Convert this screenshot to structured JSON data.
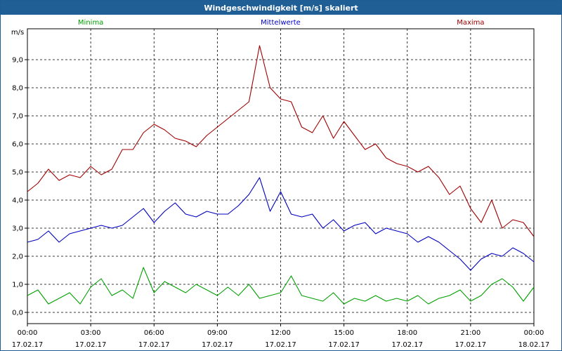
{
  "window": {
    "title": "Windgeschwindigkeit [m/s] skaliert"
  },
  "chart_data": {
    "type": "line",
    "title": "Windgeschwindigkeit [m/s] skaliert",
    "ylabel": "m/s",
    "xlabel": "",
    "ylim": [
      -0.4,
      10.1
    ],
    "xlim": [
      0,
      24
    ],
    "grid": true,
    "legend_placement": "top",
    "y_ticks": [
      "0,0",
      "1,0",
      "2,0",
      "3,0",
      "4,0",
      "5,0",
      "6,0",
      "7,0",
      "8,0",
      "9,0"
    ],
    "y_tick_values": [
      0,
      1,
      2,
      3,
      4,
      5,
      6,
      7,
      8,
      9
    ],
    "x_ticks": [
      {
        "time": "00:00",
        "date": "17.02.17"
      },
      {
        "time": "03:00",
        "date": "17.02.17"
      },
      {
        "time": "06:00",
        "date": "17.02.17"
      },
      {
        "time": "09:00",
        "date": "17.02.17"
      },
      {
        "time": "12:00",
        "date": "17.02.17"
      },
      {
        "time": "15:00",
        "date": "17.02.17"
      },
      {
        "time": "18:00",
        "date": "17.02.17"
      },
      {
        "time": "21:00",
        "date": "17.02.17"
      },
      {
        "time": "00:00",
        "date": "18.02.17"
      }
    ],
    "x_tick_values": [
      0,
      3,
      6,
      9,
      12,
      15,
      18,
      21,
      24
    ],
    "x_hours": [
      0,
      0.5,
      1,
      1.5,
      2,
      2.5,
      3,
      3.5,
      4,
      4.5,
      5,
      5.5,
      6,
      6.5,
      7,
      7.5,
      8,
      8.5,
      9,
      9.5,
      10,
      10.5,
      11,
      11.5,
      12,
      12.5,
      13,
      13.5,
      14,
      14.5,
      15,
      15.5,
      16,
      16.5,
      17,
      17.5,
      18,
      18.5,
      19,
      19.5,
      20,
      20.5,
      21,
      21.5,
      22,
      22.5,
      23,
      23.5,
      24
    ],
    "series": [
      {
        "name": "Minima",
        "color": "#00a000",
        "values": [
          0.6,
          0.8,
          0.3,
          0.5,
          0.7,
          0.3,
          0.9,
          1.2,
          0.6,
          0.8,
          0.5,
          1.6,
          0.7,
          1.1,
          0.9,
          0.7,
          1.0,
          0.8,
          0.6,
          0.9,
          0.6,
          1.0,
          0.5,
          0.6,
          0.7,
          1.3,
          0.6,
          0.5,
          0.4,
          0.7,
          0.3,
          0.5,
          0.4,
          0.6,
          0.4,
          0.5,
          0.4,
          0.6,
          0.3,
          0.5,
          0.6,
          0.8,
          0.4,
          0.6,
          1.0,
          1.2,
          0.9,
          0.4,
          0.9
        ]
      },
      {
        "name": "Mittelwerte",
        "color": "#0000c0",
        "values": [
          2.5,
          2.6,
          2.9,
          2.5,
          2.8,
          2.9,
          3.0,
          3.1,
          3.0,
          3.1,
          3.4,
          3.7,
          3.2,
          3.6,
          3.9,
          3.5,
          3.4,
          3.6,
          3.5,
          3.5,
          3.8,
          4.2,
          4.8,
          3.6,
          4.3,
          3.5,
          3.4,
          3.5,
          3.0,
          3.3,
          2.9,
          3.1,
          3.2,
          2.8,
          3.0,
          2.9,
          2.8,
          2.5,
          2.7,
          2.5,
          2.2,
          1.9,
          1.5,
          1.9,
          2.1,
          2.0,
          2.3,
          2.1,
          1.8
        ]
      },
      {
        "name": "Maxima",
        "color": "#a00000",
        "values": [
          4.3,
          4.6,
          5.1,
          4.7,
          4.9,
          4.8,
          5.2,
          4.9,
          5.1,
          5.8,
          5.8,
          6.4,
          6.7,
          6.5,
          6.2,
          6.1,
          5.9,
          6.3,
          6.6,
          6.9,
          7.2,
          7.5,
          9.5,
          8.0,
          7.6,
          7.5,
          6.6,
          6.4,
          7.0,
          6.2,
          6.8,
          6.3,
          5.8,
          6.0,
          5.5,
          5.3,
          5.2,
          5.0,
          5.2,
          4.8,
          4.2,
          4.5,
          3.7,
          3.2,
          4.0,
          3.0,
          3.3,
          3.2,
          2.7
        ]
      }
    ]
  }
}
